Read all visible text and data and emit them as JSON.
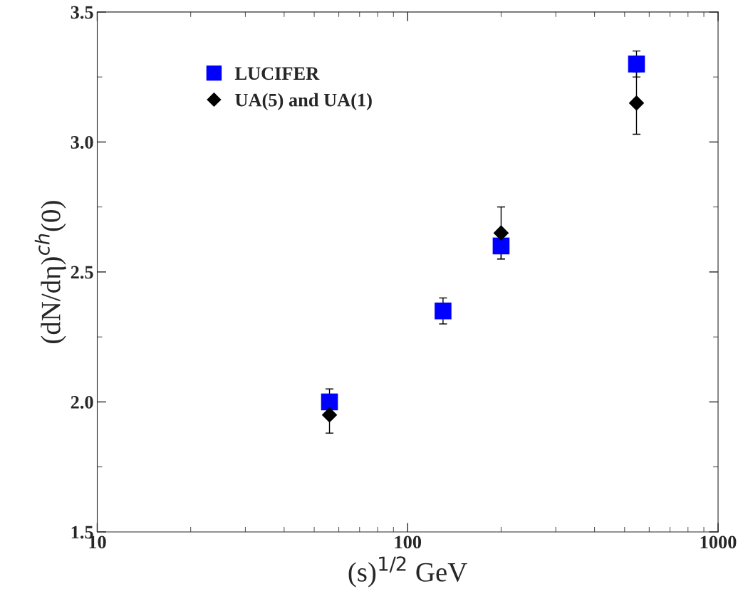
{
  "chart_data": {
    "type": "scatter",
    "xlabel": "(s)$^{1/2}$ GeV",
    "ylabel": "(dN/dη)$^{ch}$(0)",
    "log": "x",
    "xlim": [
      10,
      1000
    ],
    "xticks": [
      10,
      100,
      1000
    ],
    "ylim": [
      1.5,
      3.5
    ],
    "yticks": [
      {
        "value": 1.5,
        "label": "1.5"
      },
      {
        "value": 2.0,
        "label": "2.0"
      },
      {
        "value": 2.5,
        "label": "2.5"
      },
      {
        "value": 3.0,
        "label": "3.0"
      },
      {
        "value": 3.5,
        "label": "3.5"
      }
    ],
    "grid": false,
    "legend": "top left",
    "series": [
      {
        "name": "LUCIFER",
        "color": "#0000ff",
        "marker": "square",
        "x": [
          56,
          130,
          200,
          546
        ],
        "values": [
          2.0,
          2.35,
          2.6,
          3.3
        ],
        "errors": [
          0.05,
          0.05,
          0.05,
          0.05
        ]
      },
      {
        "name": "UA(5) and UA(1)",
        "color": "#000000",
        "marker": "diamond",
        "x": [
          56,
          200,
          546
        ],
        "values": [
          1.95,
          2.65,
          3.15
        ],
        "errors": [
          0.07,
          0.1,
          0.12
        ]
      }
    ]
  }
}
